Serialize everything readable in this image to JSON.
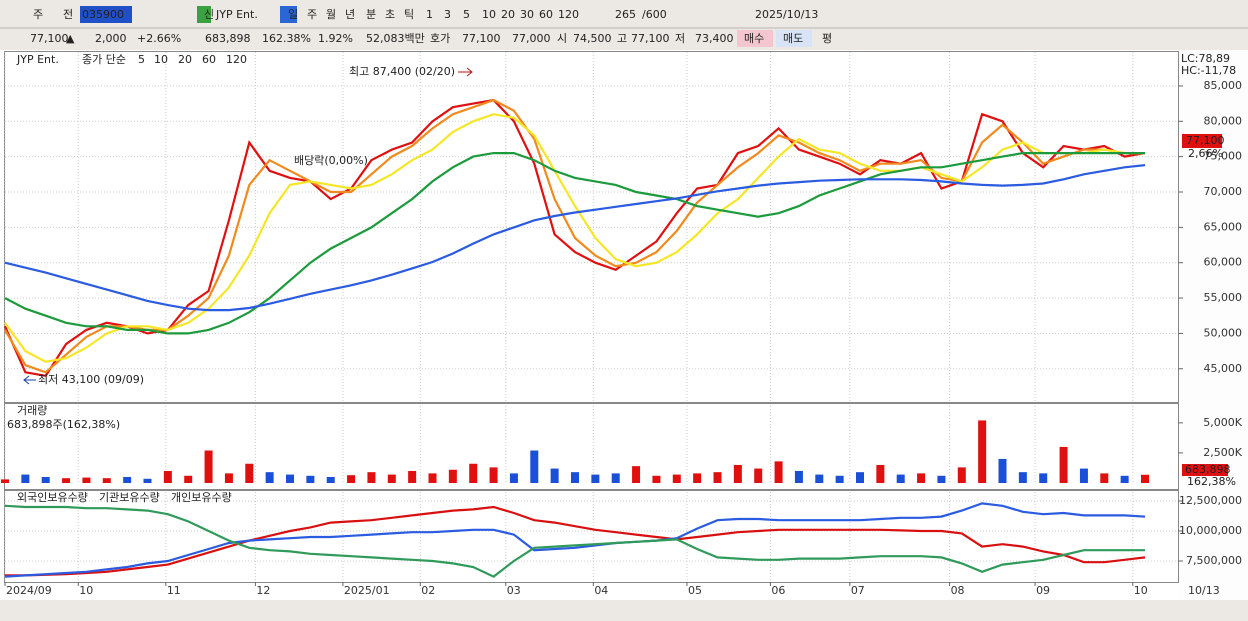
{
  "toolbar": {
    "items": [
      "주",
      "전",
      "035900",
      "JYP Ent.",
      "신",
      "일",
      "주",
      "월",
      "년",
      "분",
      "초",
      "틱",
      "1",
      "3",
      "5",
      "10",
      "20",
      "30",
      "60",
      "120",
      "265",
      "/600",
      "2025/10/13"
    ]
  },
  "quote": {
    "price": "77,100",
    "arrow": "▲",
    "change": "2,000",
    "rate": "+2.66%",
    "volume": "683,898",
    "volume_ratio": "162.38%",
    "turnover": "1.92%",
    "amount": "52,083백만",
    "ask_label": "호가",
    "ask": "77,100",
    "bid": "77,000",
    "open_label": "시",
    "open": "74,500",
    "high_label": "고",
    "high": "77,100",
    "low_label": "저",
    "low": "73,400",
    "buy": "매수",
    "sell": "매도",
    "avg": "평"
  },
  "x_axis_end": "10/13",
  "chart_data": [
    {
      "type": "line",
      "title": "JYP Ent.",
      "legend_label": "종가 단순",
      "xlim": [
        0,
        56
      ],
      "ylim": [
        40300,
        89800
      ],
      "yticks": [
        {
          "value": 45000,
          "label": "45,000"
        },
        {
          "value": 50000,
          "label": "50,000"
        },
        {
          "value": 55000,
          "label": "55,000"
        },
        {
          "value": 60000,
          "label": "60,000"
        },
        {
          "value": 65000,
          "label": "65,000"
        },
        {
          "value": 70000,
          "label": "70,000"
        },
        {
          "value": 75000,
          "label": "75,000"
        },
        {
          "value": 80000,
          "label": "80,000"
        },
        {
          "value": 85000,
          "label": "85,000"
        }
      ],
      "grid": true,
      "indicators": [
        "LC:78,89",
        "HC:-11,78"
      ],
      "last_price_label": "77,100",
      "last_rate_label": "2,66%",
      "annotations": [
        "최고 87,400 (02/20)",
        "최저 43,100 (09/09)",
        "배당락(0,00%)"
      ],
      "series": [
        {
          "name": "5",
          "color": "#e01010",
          "values": [
            51000,
            44500,
            44000,
            48500,
            50500,
            51500,
            51000,
            50000,
            50500,
            54000,
            56000,
            66000,
            77000,
            73000,
            72000,
            71500,
            69000,
            70500,
            74500,
            76000,
            77000,
            80000,
            82000,
            82500,
            83000,
            80000,
            74000,
            64000,
            61500,
            60000,
            59000,
            61000,
            63000,
            67000,
            70500,
            71000,
            75500,
            76500,
            79000,
            76000,
            75000,
            74000,
            72500,
            74500,
            74000,
            75500,
            70500,
            71500,
            81000,
            80000,
            75500,
            73500,
            76500,
            76000,
            76500,
            75000,
            75500
          ]
        },
        {
          "name": "10",
          "color": "#f08a1c",
          "values": [
            50500,
            45500,
            44500,
            47000,
            49500,
            51000,
            51000,
            50500,
            50500,
            52500,
            55000,
            61000,
            71000,
            74500,
            73000,
            71500,
            70000,
            70000,
            72500,
            75000,
            76500,
            79000,
            81000,
            82000,
            83000,
            81500,
            77500,
            69000,
            63500,
            61000,
            59500,
            60000,
            61500,
            64500,
            68500,
            71000,
            73500,
            75500,
            78000,
            77000,
            75500,
            74500,
            73000,
            74000,
            74000,
            74500,
            72000,
            71500,
            77000,
            79500,
            77000,
            74000,
            75000,
            76000,
            76000,
            75500,
            75500
          ]
        },
        {
          "name": "20",
          "color": "#f5e626",
          "values": [
            51500,
            47500,
            46000,
            46500,
            48000,
            50000,
            51000,
            51000,
            50500,
            51500,
            53500,
            56500,
            61000,
            67000,
            71000,
            71500,
            71000,
            70500,
            71000,
            72500,
            74500,
            76000,
            78500,
            80000,
            81000,
            80500,
            78000,
            73000,
            68000,
            63500,
            60500,
            59500,
            60000,
            61500,
            64000,
            67000,
            69000,
            72000,
            75000,
            77500,
            76000,
            75500,
            74000,
            73000,
            73000,
            73500,
            72500,
            71500,
            73500,
            76000,
            77000,
            75500,
            75500,
            75500,
            76000,
            75500,
            75500
          ]
        },
        {
          "name": "60",
          "color": "#1c9a3c",
          "values": [
            55000,
            53500,
            52500,
            51500,
            51000,
            51000,
            50500,
            50500,
            50000,
            50000,
            50500,
            51500,
            53000,
            55000,
            57500,
            60000,
            62000,
            63500,
            65000,
            67000,
            69000,
            71500,
            73500,
            75000,
            75500,
            75500,
            74500,
            73000,
            72000,
            71500,
            71000,
            70000,
            69500,
            69000,
            68000,
            67500,
            67000,
            66500,
            67000,
            68000,
            69500,
            70500,
            71500,
            72500,
            73000,
            73500,
            73500,
            74000,
            74500,
            75000,
            75500,
            75500,
            75500,
            75500,
            75500,
            75500,
            75500
          ]
        },
        {
          "name": "120",
          "color": "#2a5be0",
          "values": [
            60000,
            59300,
            58600,
            57800,
            57000,
            56200,
            55400,
            54600,
            54000,
            53500,
            53300,
            53300,
            53600,
            54200,
            54900,
            55600,
            56200,
            56800,
            57500,
            58300,
            59200,
            60100,
            61300,
            62700,
            64000,
            65000,
            66000,
            66600,
            67100,
            67500,
            67900,
            68300,
            68700,
            69100,
            69600,
            70100,
            70500,
            70900,
            71200,
            71400,
            71600,
            71700,
            71800,
            71800,
            71800,
            71700,
            71500,
            71200,
            71000,
            70900,
            71000,
            71200,
            71800,
            72500,
            73000,
            73500,
            73800
          ]
        }
      ]
    },
    {
      "type": "bar",
      "title": "거래량",
      "subtitle": "683,898주(162,38%)",
      "xlim": [
        0,
        56
      ],
      "ylim": [
        0,
        6400
      ],
      "yticks": [
        {
          "value": 2500,
          "label": "2,500K"
        },
        {
          "value": 5000,
          "label": "5,000K"
        }
      ],
      "up_color": "#e01010",
      "down_color": "#1a4fd8",
      "last_labels": [
        "683,898",
        "162,38%"
      ],
      "values": [
        300,
        700,
        500,
        400,
        450,
        400,
        500,
        350,
        1000,
        600,
        2700,
        800,
        1600,
        900,
        700,
        600,
        500,
        650,
        900,
        700,
        1000,
        800,
        1100,
        1600,
        1300,
        800,
        2700,
        1200,
        900,
        700,
        800,
        1400,
        600,
        700,
        800,
        900,
        1500,
        1200,
        1800,
        1000,
        700,
        600,
        900,
        1500,
        700,
        800,
        600,
        1300,
        5200,
        2000,
        900,
        800,
        3000,
        1200,
        800,
        600,
        683.898
      ]
    },
    {
      "type": "line",
      "xlim": [
        0,
        56
      ],
      "ylim": [
        5750000,
        13250000
      ],
      "yticks": [
        {
          "value": 7500000,
          "label": "7,500,000"
        },
        {
          "value": 10000000,
          "label": "10,000,000"
        },
        {
          "value": 12500000,
          "label": "12,500,000"
        }
      ],
      "xticks": [
        {
          "value": 0,
          "label": "2024/09"
        },
        {
          "value": 3.6,
          "label": "10"
        },
        {
          "value": 7.9,
          "label": "11"
        },
        {
          "value": 12.3,
          "label": "12"
        },
        {
          "value": 16.6,
          "label": "2025/01"
        },
        {
          "value": 20.4,
          "label": "02"
        },
        {
          "value": 24.6,
          "label": "03"
        },
        {
          "value": 28.9,
          "label": "04"
        },
        {
          "value": 33.5,
          "label": "05"
        },
        {
          "value": 37.6,
          "label": "06"
        },
        {
          "value": 41.5,
          "label": "07"
        },
        {
          "value": 46.4,
          "label": "08"
        },
        {
          "value": 50.6,
          "label": "09"
        },
        {
          "value": 55.4,
          "label": "10"
        }
      ],
      "series": [
        {
          "name": "외국인보유수량",
          "color": "#d81010",
          "values": [
            6300000,
            6300000,
            6350000,
            6400000,
            6500000,
            6600000,
            6800000,
            7000000,
            7200000,
            7700000,
            8200000,
            8700000,
            9200000,
            9600000,
            10000000,
            10300000,
            10700000,
            10800000,
            10900000,
            11100000,
            11300000,
            11500000,
            11700000,
            11800000,
            12000000,
            11500000,
            10900000,
            10700000,
            10400000,
            10100000,
            9900000,
            9700000,
            9500000,
            9300000,
            9500000,
            9700000,
            9900000,
            10000000,
            10100000,
            10100000,
            10100000,
            10100000,
            10100000,
            10100000,
            10050000,
            10000000,
            10000000,
            9800000,
            8700000,
            8900000,
            8700000,
            8300000,
            8000000,
            7400000,
            7400000,
            7600000,
            7800000
          ]
        },
        {
          "name": "기관보유수량",
          "color": "#2a5be0",
          "values": [
            6200000,
            6300000,
            6400000,
            6500000,
            6600000,
            6800000,
            7000000,
            7300000,
            7500000,
            8000000,
            8500000,
            9000000,
            9200000,
            9300000,
            9400000,
            9500000,
            9500000,
            9600000,
            9700000,
            9800000,
            9900000,
            9900000,
            10000000,
            10100000,
            10100000,
            9700000,
            8400000,
            8500000,
            8600000,
            8800000,
            9000000,
            9100000,
            9200000,
            9400000,
            10200000,
            10900000,
            11000000,
            11000000,
            10900000,
            10900000,
            10900000,
            10900000,
            10900000,
            11000000,
            11100000,
            11100000,
            11200000,
            11700000,
            12300000,
            12100000,
            11600000,
            11400000,
            11500000,
            11300000,
            11300000,
            11300000,
            11200000
          ]
        },
        {
          "name": "개인보유수량",
          "color": "#2f9a5a",
          "values": [
            12100000,
            12000000,
            12000000,
            12000000,
            11900000,
            11900000,
            11800000,
            11700000,
            11400000,
            10800000,
            10000000,
            9200000,
            8600000,
            8400000,
            8300000,
            8100000,
            8000000,
            7900000,
            7800000,
            7700000,
            7600000,
            7500000,
            7300000,
            7000000,
            6200000,
            7500000,
            8600000,
            8700000,
            8800000,
            8900000,
            9000000,
            9100000,
            9200000,
            9300000,
            8500000,
            7800000,
            7700000,
            7600000,
            7600000,
            7700000,
            7700000,
            7700000,
            7800000,
            7900000,
            7900000,
            7900000,
            7800000,
            7300000,
            6600000,
            7200000,
            7400000,
            7600000,
            8000000,
            8400000,
            8400000,
            8400000,
            8400000
          ]
        }
      ]
    }
  ]
}
